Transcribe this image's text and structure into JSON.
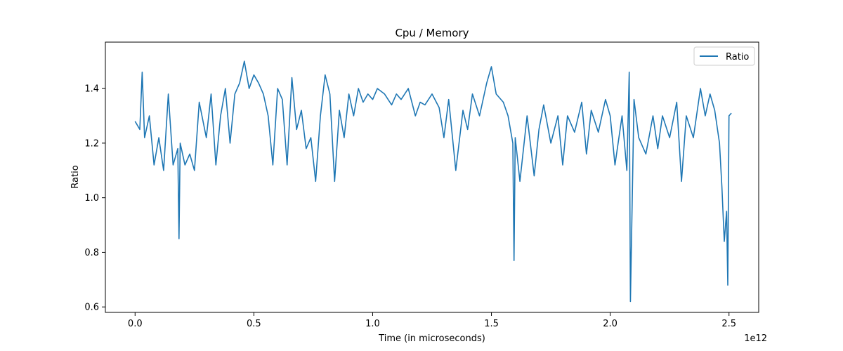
{
  "chart_data": {
    "type": "line",
    "title": "Cpu / Memory",
    "xlabel": "Time (in microseconds)",
    "ylabel": "Ratio",
    "x_offset_label": "1e12",
    "x_scale_factor": 1000000000000.0,
    "xlim": [
      -125000000000.0,
      2625000000000.0
    ],
    "ylim": [
      0.58,
      1.57
    ],
    "x_ticks": [
      0,
      500000000000.0,
      1000000000000.0,
      1500000000000.0,
      2000000000000.0,
      2500000000000.0
    ],
    "x_tick_labels": [
      "0.0",
      "0.5",
      "1.0",
      "1.5",
      "2.0",
      "2.5"
    ],
    "y_ticks": [
      0.6,
      0.8,
      1.0,
      1.2,
      1.4
    ],
    "y_tick_labels": [
      "0.6",
      "0.8",
      "1.0",
      "1.2",
      "1.4"
    ],
    "grid": false,
    "legend_position": "top-right",
    "series": [
      {
        "name": "Ratio",
        "color": "#1f77b4",
        "x": [
          0,
          20000000000.0,
          30000000000.0,
          40000000000.0,
          60000000000.0,
          80000000000.0,
          100000000000.0,
          120000000000.0,
          140000000000.0,
          160000000000.0,
          180000000000.0,
          185000000000.0,
          190000000000.0,
          210000000000.0,
          230000000000.0,
          250000000000.0,
          270000000000.0,
          300000000000.0,
          320000000000.0,
          340000000000.0,
          360000000000.0,
          380000000000.0,
          400000000000.0,
          420000000000.0,
          440000000000.0,
          460000000000.0,
          480000000000.0,
          500000000000.0,
          520000000000.0,
          540000000000.0,
          560000000000.0,
          580000000000.0,
          600000000000.0,
          620000000000.0,
          640000000000.0,
          660000000000.0,
          680000000000.0,
          700000000000.0,
          720000000000.0,
          740000000000.0,
          760000000000.0,
          780000000000.0,
          800000000000.0,
          820000000000.0,
          840000000000.0,
          860000000000.0,
          880000000000.0,
          900000000000.0,
          920000000000.0,
          940000000000.0,
          960000000000.0,
          980000000000.0,
          1000000000000.0,
          1020000000000.0,
          1050000000000.0,
          1080000000000.0,
          1100000000000.0,
          1120000000000.0,
          1150000000000.0,
          1180000000000.0,
          1200000000000.0,
          1220000000000.0,
          1250000000000.0,
          1280000000000.0,
          1300000000000.0,
          1320000000000.0,
          1350000000000.0,
          1380000000000.0,
          1400000000000.0,
          1420000000000.0,
          1450000000000.0,
          1480000000000.0,
          1500000000000.0,
          1520000000000.0,
          1550000000000.0,
          1570000000000.0,
          1590000000000.0,
          1595000000000.0,
          1600000000000.0,
          1620000000000.0,
          1650000000000.0,
          1680000000000.0,
          1700000000000.0,
          1720000000000.0,
          1750000000000.0,
          1780000000000.0,
          1800000000000.0,
          1820000000000.0,
          1850000000000.0,
          1880000000000.0,
          1900000000000.0,
          1920000000000.0,
          1950000000000.0,
          1980000000000.0,
          2000000000000.0,
          2020000000000.0,
          2050000000000.0,
          2070000000000.0,
          2080000000000.0,
          2085000000000.0,
          2100000000000.0,
          2120000000000.0,
          2150000000000.0,
          2180000000000.0,
          2200000000000.0,
          2220000000000.0,
          2250000000000.0,
          2280000000000.0,
          2300000000000.0,
          2320000000000.0,
          2350000000000.0,
          2380000000000.0,
          2400000000000.0,
          2420000000000.0,
          2440000000000.0,
          2460000000000.0,
          2470000000000.0,
          2480000000000.0,
          2490000000000.0,
          2495000000000.0,
          2500000000000.0,
          2510000000000.0
        ],
        "values": [
          1.28,
          1.25,
          1.46,
          1.22,
          1.3,
          1.12,
          1.22,
          1.1,
          1.38,
          1.12,
          1.18,
          0.85,
          1.2,
          1.12,
          1.16,
          1.1,
          1.35,
          1.22,
          1.38,
          1.12,
          1.3,
          1.4,
          1.2,
          1.38,
          1.42,
          1.5,
          1.4,
          1.45,
          1.42,
          1.38,
          1.3,
          1.12,
          1.4,
          1.36,
          1.12,
          1.44,
          1.25,
          1.32,
          1.18,
          1.22,
          1.06,
          1.3,
          1.45,
          1.38,
          1.06,
          1.32,
          1.22,
          1.38,
          1.3,
          1.4,
          1.35,
          1.38,
          1.36,
          1.4,
          1.38,
          1.34,
          1.38,
          1.36,
          1.4,
          1.3,
          1.35,
          1.34,
          1.38,
          1.33,
          1.22,
          1.36,
          1.1,
          1.32,
          1.25,
          1.38,
          1.3,
          1.42,
          1.48,
          1.38,
          1.35,
          1.3,
          1.2,
          0.77,
          1.22,
          1.06,
          1.3,
          1.08,
          1.25,
          1.34,
          1.2,
          1.3,
          1.12,
          1.3,
          1.24,
          1.35,
          1.16,
          1.32,
          1.24,
          1.36,
          1.3,
          1.12,
          1.3,
          1.1,
          1.46,
          0.62,
          1.36,
          1.22,
          1.16,
          1.3,
          1.18,
          1.3,
          1.22,
          1.35,
          1.06,
          1.3,
          1.22,
          1.4,
          1.3,
          1.38,
          1.32,
          1.2,
          1.04,
          0.84,
          0.95,
          0.68,
          1.3,
          1.31
        ]
      }
    ]
  }
}
